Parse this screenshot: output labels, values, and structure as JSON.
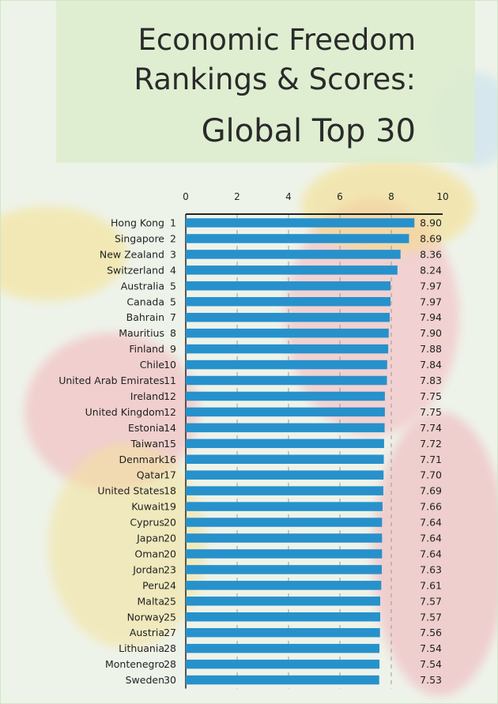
{
  "title_lines": [
    "Economic Freedom",
    "Rankings & Scores:",
    "Global Top 30"
  ],
  "colors": {
    "bar": "#2791cc",
    "title_bg": "#dcecce"
  },
  "chart_data": {
    "type": "bar",
    "orientation": "horizontal",
    "title": "Economic Freedom Rankings & Scores: Global Top 30",
    "xlim": [
      0,
      10
    ],
    "xticks": [
      0,
      2,
      4,
      6,
      8,
      10
    ],
    "grid": "dashed vertical",
    "xaxis_position": "top",
    "categories": [
      "Hong Kong",
      "Singapore",
      "New Zealand",
      "Switzerland",
      "Australia",
      "Canada",
      "Bahrain",
      "Mauritius",
      "Finland",
      "Chile",
      "United Arab Emirates",
      "Ireland",
      "United Kingdom",
      "Estonia",
      "Taiwan",
      "Denmark",
      "Qatar",
      "United States",
      "Kuwait",
      "Cyprus",
      "Japan",
      "Oman",
      "Jordan",
      "Peru",
      "Malta",
      "Norway",
      "Austria",
      "Lithuania",
      "Montenegro",
      "Sweden"
    ],
    "ranks": [
      1,
      2,
      3,
      4,
      5,
      5,
      7,
      8,
      9,
      10,
      11,
      12,
      12,
      14,
      15,
      16,
      17,
      18,
      19,
      20,
      20,
      20,
      23,
      24,
      25,
      25,
      27,
      28,
      28,
      30
    ],
    "values": [
      "8.90",
      "8.69",
      "8.36",
      "8.24",
      "7.97",
      "7.97",
      "7.94",
      "7.90",
      "7.88",
      "7.84",
      "7.83",
      "7.75",
      "7.75",
      "7.74",
      "7.72",
      "7.71",
      "7.70",
      "7.69",
      "7.66",
      "7.64",
      "7.64",
      "7.64",
      "7.63",
      "7.61",
      "7.57",
      "7.57",
      "7.56",
      "7.54",
      "7.54",
      "7.53"
    ]
  }
}
